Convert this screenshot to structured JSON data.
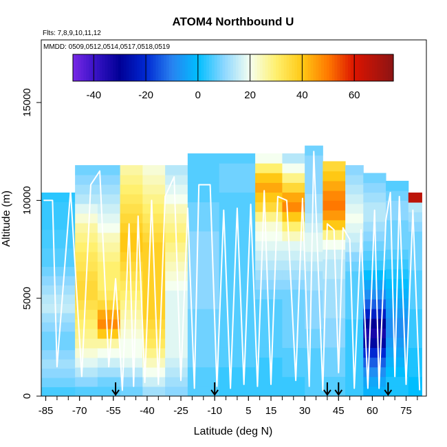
{
  "chart_data": {
    "type": "heatmap",
    "title": "ATOM4 Northbound U",
    "flights_label": "Flts: 7,8,9,10,11,12",
    "dates_label": "MMDD: 0509,0512,0514,0517,0518,0519",
    "xlabel": "Latitude (deg N)",
    "ylabel": "Altitude (m)",
    "xlim": [
      -87,
      84
    ],
    "ylim": [
      0,
      18200
    ],
    "x_ticks": [
      -85,
      -70,
      -55,
      -40,
      -25,
      -10,
      5,
      15,
      30,
      45,
      60,
      75
    ],
    "x_tick_labels": [
      "-85",
      "-70",
      "-55",
      "-40",
      "-25",
      "-10",
      "5",
      "15",
      "30",
      "45",
      "60",
      "75"
    ],
    "y_ticks": [
      0,
      5000,
      10000,
      15000
    ],
    "y_tick_labels": [
      "0",
      "5000",
      "10000",
      "15000"
    ],
    "colorbar": {
      "range": [
        -48,
        75
      ],
      "ticks": [
        -40,
        -20,
        0,
        20,
        40,
        60
      ],
      "tick_labels": [
        "-40",
        "-20",
        "0",
        "20",
        "40",
        "60"
      ]
    },
    "arrow_latitudes": [
      -54,
      -10,
      40,
      45,
      67
    ],
    "wind_field": {
      "columns": [
        {
          "lat_min": -87,
          "lat_max": -72,
          "alt_max": 10400,
          "values": [
            5,
            8,
            10,
            12,
            10,
            8,
            8,
            10,
            12,
            15,
            14,
            12,
            10,
            8,
            6,
            6,
            5,
            5,
            4,
            4,
            4,
            3
          ]
        },
        {
          "lat_min": -72,
          "lat_max": -62,
          "alt_max": 11800,
          "values": [
            6,
            10,
            14,
            18,
            22,
            26,
            28,
            30,
            32,
            34,
            36,
            36,
            35,
            33,
            32,
            30,
            28,
            26,
            22,
            18,
            14,
            12,
            10,
            8
          ]
        },
        {
          "lat_min": -62,
          "lat_max": -52,
          "alt_max": 11800,
          "values": [
            6,
            8,
            12,
            16,
            20,
            26,
            40,
            48,
            44,
            36,
            32,
            30,
            30,
            30,
            28,
            26,
            24,
            20,
            18,
            16,
            14,
            12,
            10,
            8
          ]
        },
        {
          "lat_min": -52,
          "lat_max": -42,
          "alt_max": 11800,
          "values": [
            8,
            10,
            14,
            18,
            20,
            20,
            22,
            24,
            26,
            28,
            30,
            32,
            34,
            36,
            38,
            40,
            40,
            38,
            36,
            34,
            32,
            30,
            28,
            26
          ]
        },
        {
          "lat_min": -42,
          "lat_max": -32,
          "alt_max": 11800,
          "values": [
            12,
            16,
            20,
            24,
            28,
            32,
            34,
            36,
            38,
            38,
            38,
            38,
            38,
            38,
            38,
            38,
            36,
            34,
            32,
            30,
            28,
            26,
            24,
            22
          ]
        },
        {
          "lat_min": -32,
          "lat_max": -22,
          "alt_max": 11800,
          "values": [
            10,
            12,
            14,
            16,
            18,
            18,
            18,
            18,
            18,
            18,
            18,
            20,
            22,
            24,
            26,
            28,
            30,
            28,
            26,
            24,
            20,
            18,
            16,
            14
          ]
        },
        {
          "lat_min": -22,
          "lat_max": -8,
          "alt_max": 12400,
          "values": [
            6,
            6,
            6,
            8,
            8,
            8,
            8,
            8,
            8,
            10,
            10,
            10,
            10,
            10,
            10,
            10,
            10,
            8,
            8,
            8,
            6,
            6,
            6,
            6,
            6
          ]
        },
        {
          "lat_min": -8,
          "lat_max": 8,
          "alt_max": 12400,
          "values": [
            4,
            4,
            4,
            6,
            6,
            6,
            6,
            6,
            6,
            6,
            6,
            6,
            6,
            6,
            6,
            6,
            6,
            6,
            6,
            6,
            6,
            8,
            8,
            8,
            6
          ]
        },
        {
          "lat_min": 8,
          "lat_max": 20,
          "alt_max": 12400,
          "values": [
            4,
            4,
            4,
            4,
            6,
            6,
            6,
            6,
            6,
            6,
            8,
            10,
            12,
            14,
            16,
            18,
            20,
            22,
            28,
            36,
            40,
            44,
            40,
            30,
            20
          ]
        },
        {
          "lat_min": 20,
          "lat_max": 30,
          "alt_max": 12400,
          "values": [
            4,
            4,
            6,
            6,
            6,
            8,
            8,
            8,
            8,
            8,
            8,
            10,
            12,
            14,
            16,
            18,
            24,
            30,
            40,
            48,
            44,
            36,
            28,
            20,
            14
          ]
        },
        {
          "lat_min": 30,
          "lat_max": 38,
          "alt_max": 12800,
          "values": [
            6,
            6,
            6,
            6,
            6,
            8,
            8,
            10,
            10,
            10,
            10,
            12,
            12,
            14,
            16,
            18,
            18,
            16,
            14,
            12,
            12,
            10,
            10,
            10,
            10,
            8
          ]
        },
        {
          "lat_min": 38,
          "lat_max": 48,
          "alt_max": 12000,
          "values": [
            6,
            6,
            8,
            8,
            8,
            10,
            10,
            10,
            12,
            12,
            12,
            12,
            14,
            14,
            16,
            20,
            28,
            40,
            46,
            50,
            48,
            44,
            40,
            36
          ]
        },
        {
          "lat_min": 48,
          "lat_max": 56,
          "alt_max": 11800,
          "values": [
            4,
            4,
            4,
            4,
            4,
            4,
            4,
            4,
            6,
            6,
            6,
            6,
            6,
            8,
            10,
            14,
            16,
            18,
            20,
            18,
            16,
            14,
            12,
            10
          ]
        },
        {
          "lat_min": 56,
          "lat_max": 66,
          "alt_max": 11400,
          "values": [
            -2,
            -4,
            -8,
            -14,
            -20,
            -28,
            -34,
            -30,
            -22,
            -14,
            -8,
            -4,
            0,
            4,
            6,
            8,
            10,
            12,
            14,
            14,
            12,
            10,
            8
          ]
        },
        {
          "lat_min": 66,
          "lat_max": 76,
          "alt_max": 11000,
          "values": [
            2,
            2,
            0,
            -2,
            -4,
            -6,
            -8,
            -8,
            -6,
            -4,
            -2,
            0,
            2,
            4,
            6,
            8,
            8,
            8,
            10,
            10,
            8,
            6
          ]
        },
        {
          "lat_min": 76,
          "lat_max": 82,
          "alt_max": 10400,
          "values": [
            0,
            0,
            2,
            2,
            2,
            4,
            4,
            4,
            4,
            6,
            6,
            6,
            6,
            8,
            8,
            8,
            8,
            10,
            12,
            14,
            66
          ]
        }
      ]
    },
    "flight_track_color": "#ffffff",
    "colors": {
      "background": "#ffffff",
      "axis": "#000000",
      "arrow": "#000000"
    }
  }
}
